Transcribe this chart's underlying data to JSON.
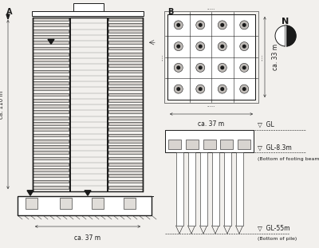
{
  "bg_color": "#f2f0ed",
  "line_color": "#1a1a1a",
  "panel_A_label": "A",
  "panel_B_label": "B",
  "num_floors": 30,
  "label_110m": "ca. 110 m",
  "label_37m_A": "ca. 37 m",
  "label_37m_B": "ca. 37 m",
  "label_33m": "ca. 33 m",
  "gl_label": "▽  GL",
  "gl_8_label": "▽  GL-8.3m",
  "gl_8_sub": "(Bottom of footing beam)",
  "gl_55_label": "▽  GL-55m",
  "gl_55_sub": "(Bottom of pile)",
  "north_label": "N",
  "floor_color": "#d0ccc8",
  "floor_gap_color": "#f2f0ed"
}
